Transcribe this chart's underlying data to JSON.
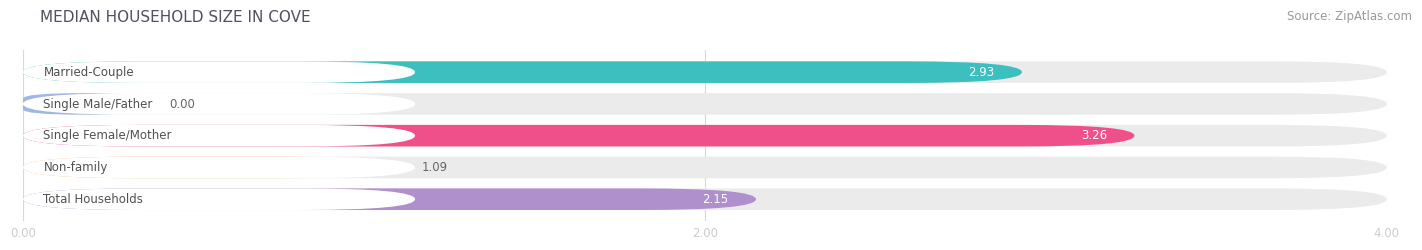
{
  "title": "MEDIAN HOUSEHOLD SIZE IN COVE",
  "source": "Source: ZipAtlas.com",
  "categories": [
    "Married-Couple",
    "Single Male/Father",
    "Single Female/Mother",
    "Non-family",
    "Total Households"
  ],
  "values": [
    2.93,
    0.0,
    3.26,
    1.09,
    2.15
  ],
  "bar_colors": [
    "#3DBFBF",
    "#A0B8E0",
    "#F0508A",
    "#F5C080",
    "#B090CC"
  ],
  "background_color": "#ffffff",
  "bar_bg_color": "#ebebeb",
  "xlim": [
    0,
    4.0
  ],
  "xticks": [
    0.0,
    2.0,
    4.0
  ],
  "xtick_labels": [
    "0.00",
    "2.00",
    "4.00"
  ],
  "title_fontsize": 11,
  "label_fontsize": 8.5,
  "value_fontsize": 8.5,
  "source_fontsize": 8.5,
  "value_inside_threshold": 2.0,
  "small_bar_display": 0.35
}
